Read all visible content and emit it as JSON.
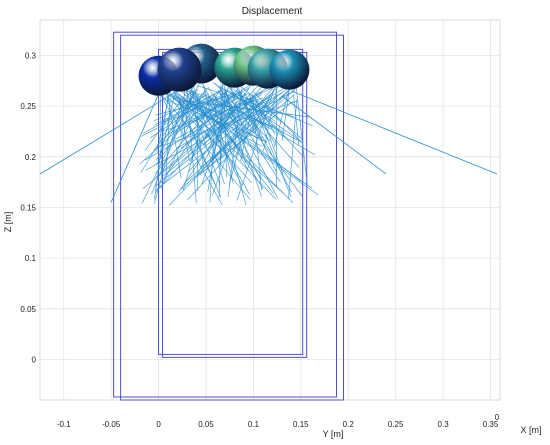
{
  "chart_data": {
    "type": "scatter",
    "title": "Displacement",
    "ylabel": "Z [m]",
    "xlabel_y": "Y [m]",
    "xlabel_x": "X [m]",
    "y_axis_ticks": [
      "0",
      "0.05",
      "0.1",
      "0.15",
      "0.2",
      "0.25",
      "0.3"
    ],
    "x_axis_ticks": [
      "-0.1",
      "-0.05",
      "0",
      "0.05",
      "0.1",
      "0.15",
      "0.2",
      "0.25",
      "0.3",
      "0.35"
    ],
    "x_axis_extra_tick": "0",
    "z_ticks": [
      0,
      0.05,
      0.1,
      0.15,
      0.2,
      0.25,
      0.3
    ],
    "y_ticks": [
      -0.1,
      -0.05,
      0,
      0.05,
      0.1,
      0.15,
      0.2,
      0.25,
      0.3,
      0.35
    ],
    "ylim": [
      -0.04,
      0.335
    ],
    "xlim": [
      -0.125,
      0.36
    ],
    "grid": true,
    "outer_box": {
      "y": [
        -0.04,
        0.195
      ],
      "z": [
        -0.04,
        0.32
      ]
    },
    "inner_box": {
      "y": [
        0.0,
        0.152
      ],
      "z": [
        0.005,
        0.306
      ]
    },
    "spheres": [
      {
        "y": 0.022,
        "z": 0.286,
        "color": "#20408f"
      },
      {
        "y": 0.045,
        "z": 0.292,
        "color": "#24608a"
      },
      {
        "y": 0.08,
        "z": 0.288,
        "color": "#2aa58e"
      },
      {
        "y": 0.1,
        "z": 0.29,
        "color": "#6dc585"
      },
      {
        "y": 0.115,
        "z": 0.287,
        "color": "#3aa0a8"
      },
      {
        "y": 0.138,
        "z": 0.286,
        "color": "#1e90b4"
      },
      {
        "y": 0.0,
        "z": 0.28,
        "color": "#0a2ea8"
      }
    ],
    "line_color": "#2a8fd0",
    "box_color": "#4b4fd6"
  }
}
